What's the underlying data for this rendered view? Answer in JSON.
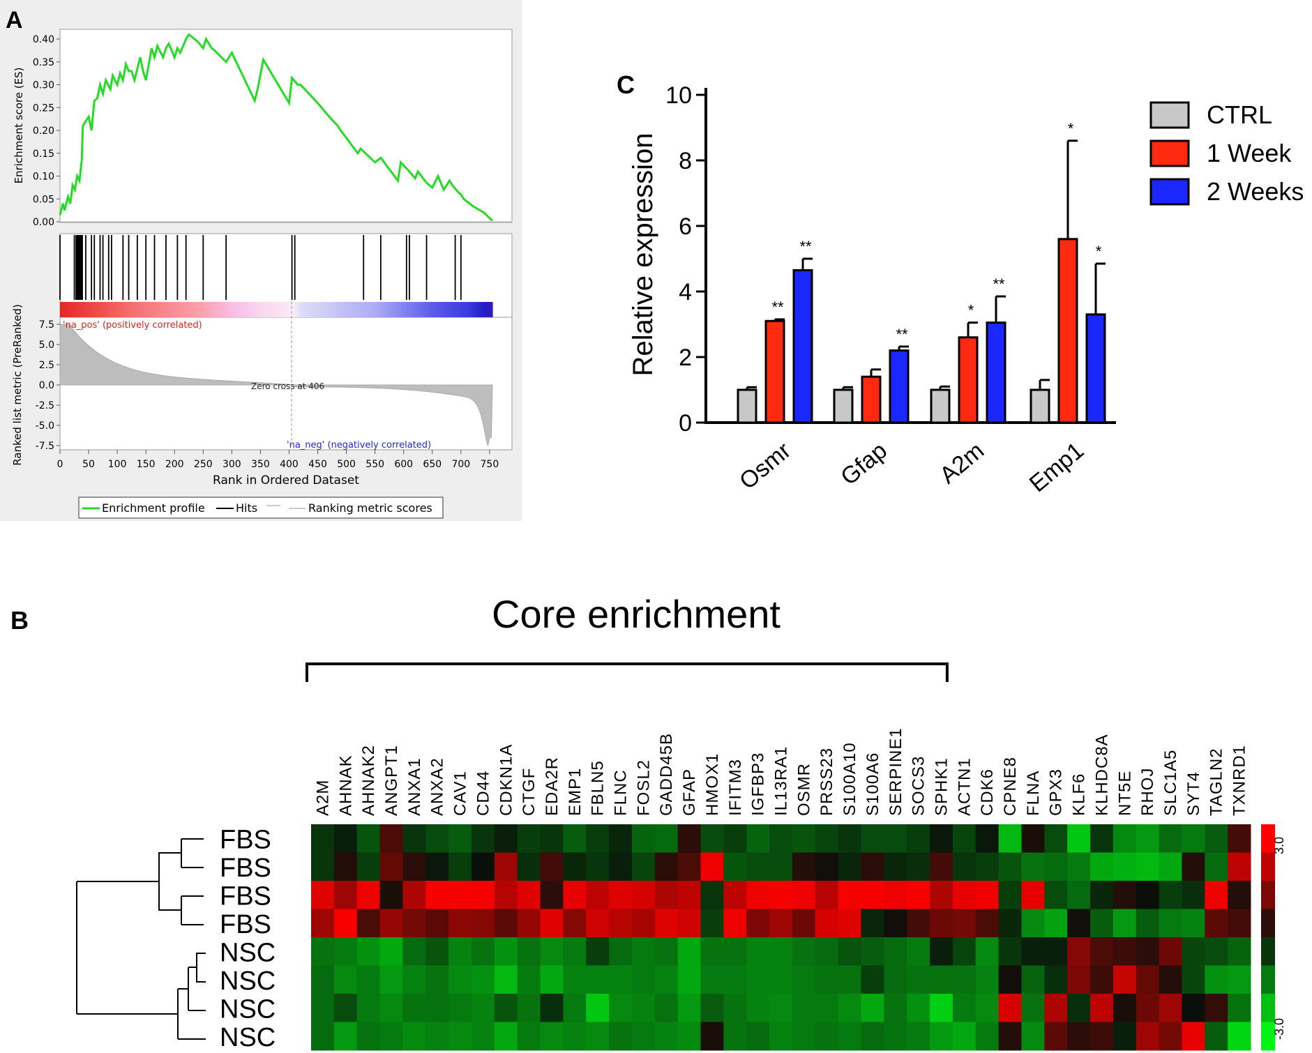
{
  "panels": {
    "a": "A",
    "b": "B",
    "c": "C"
  },
  "colors": {
    "gsea_line": "#22dd22",
    "ctrl": "#c8c8c8",
    "week1": "#ff2a10",
    "week2": "#1a28ff"
  },
  "chart_data": [
    {
      "id": "gsea",
      "type": "line",
      "ylabel": "Enrichment score (ES)",
      "ylim": [
        0.0,
        0.42
      ],
      "yticks": [
        "0.40",
        "0.35",
        "0.30",
        "0.25",
        "0.20",
        "0.15",
        "0.10",
        "0.05",
        "0.00"
      ],
      "series": [
        {
          "name": "Enrichment profile",
          "x": [
            0,
            5,
            8,
            14,
            18,
            22,
            26,
            30,
            34,
            38,
            40,
            50,
            55,
            60,
            65,
            70,
            75,
            80,
            88,
            92,
            100,
            105,
            110,
            115,
            120,
            125,
            130,
            140,
            145,
            150,
            160,
            165,
            170,
            180,
            185,
            190,
            195,
            200,
            205,
            210,
            220,
            225,
            235,
            240,
            250,
            255,
            260,
            265,
            270,
            290,
            300,
            340,
            345,
            355,
            400,
            405,
            415,
            420,
            450,
            470,
            485,
            490,
            520,
            525,
            550,
            560,
            590,
            595,
            610,
            620,
            625,
            640,
            650,
            660,
            670,
            680,
            685,
            695,
            700,
            705,
            720,
            740,
            755
          ],
          "y": [
            0.015,
            0.04,
            0.025,
            0.055,
            0.04,
            0.08,
            0.07,
            0.1,
            0.09,
            0.135,
            0.21,
            0.23,
            0.2,
            0.265,
            0.27,
            0.3,
            0.28,
            0.31,
            0.29,
            0.32,
            0.3,
            0.325,
            0.31,
            0.345,
            0.33,
            0.33,
            0.31,
            0.36,
            0.33,
            0.31,
            0.38,
            0.36,
            0.385,
            0.36,
            0.38,
            0.39,
            0.375,
            0.36,
            0.38,
            0.37,
            0.4,
            0.41,
            0.4,
            0.395,
            0.38,
            0.4,
            0.39,
            0.38,
            0.375,
            0.35,
            0.37,
            0.265,
            0.29,
            0.355,
            0.26,
            0.315,
            0.3,
            0.3,
            0.26,
            0.23,
            0.21,
            0.2,
            0.15,
            0.16,
            0.13,
            0.14,
            0.09,
            0.13,
            0.11,
            0.095,
            0.11,
            0.085,
            0.075,
            0.1,
            0.07,
            0.09,
            0.08,
            0.065,
            0.06,
            0.05,
            0.035,
            0.02,
            0.002
          ]
        }
      ],
      "hits": [
        0,
        25,
        28,
        30,
        32,
        33,
        34,
        35,
        36,
        37,
        38,
        39,
        45,
        55,
        60,
        70,
        75,
        85,
        90,
        110,
        120,
        135,
        150,
        165,
        185,
        205,
        220,
        250,
        290,
        405,
        410,
        530,
        560,
        605,
        610,
        640,
        690,
        700
      ],
      "ranked_ylabel": "Ranked list metric (PreRanked)",
      "ranked_yticks": [
        "7.5",
        "5.0",
        "2.5",
        "0.0",
        "-2.5",
        "-5.0",
        "-7.5"
      ],
      "xlabel": "Rank in Ordered Dataset",
      "xticks": [
        "0",
        "50",
        "100",
        "150",
        "200",
        "250",
        "300",
        "350",
        "400",
        "450",
        "500",
        "550",
        "600",
        "650",
        "700",
        "750"
      ],
      "annotations": {
        "pos": "'na_pos' (positively correlated)",
        "neg": "'na_neg' (negatively correlated)",
        "zero": "Zero cross at 406"
      },
      "legend": [
        "Enrichment profile",
        "Hits",
        "Ranking metric scores"
      ]
    },
    {
      "id": "expression",
      "type": "bar",
      "categories": [
        "Osmr",
        "Gfap",
        "A2m",
        "Emp1"
      ],
      "ylabel": "Relative expression",
      "ylim": [
        0,
        10
      ],
      "yticks": [
        "0",
        "2",
        "4",
        "6",
        "8",
        "10"
      ],
      "series": [
        {
          "name": "CTRL",
          "values": [
            1.0,
            1.0,
            1.0,
            1.0
          ],
          "errors": [
            0.08,
            0.08,
            0.1,
            0.3
          ],
          "sig": [
            "",
            "",
            "",
            ""
          ]
        },
        {
          "name": "1 Week",
          "values": [
            3.1,
            1.4,
            2.6,
            5.6
          ],
          "errors": [
            0.05,
            0.22,
            0.45,
            3.0
          ],
          "sig": [
            "**",
            "",
            "*",
            "*"
          ]
        },
        {
          "name": "2 Weeks",
          "values": [
            4.65,
            2.2,
            3.05,
            3.3
          ],
          "errors": [
            0.35,
            0.12,
            0.8,
            1.55
          ],
          "sig": [
            "**",
            "**",
            "**",
            "*"
          ]
        }
      ],
      "legend_position": "top-right"
    },
    {
      "id": "heatmap",
      "type": "heatmap",
      "title": "Core enrichment",
      "columns": [
        "A2M",
        "AHNAK",
        "AHNAK2",
        "ANGPT1",
        "ANXA1",
        "ANXA2",
        "CAV1",
        "CD44",
        "CDKN1A",
        "CTGF",
        "EDA2R",
        "EMP1",
        "FBLN5",
        "FLNC",
        "FOSL2",
        "GADD45B",
        "GFAP",
        "HMOX1",
        "IFITM3",
        "IGFBP3",
        "IL13RA1",
        "OSMR",
        "PRSS23",
        "S100A10",
        "S100A6",
        "SERPINE1",
        "SOCS3",
        "SPHK1",
        "ACTN1",
        "CDK6",
        "CPNE8",
        "FLNA",
        "GPX3",
        "KLF6",
        "KLHDC8A",
        "NT5E",
        "RHOJ",
        "SLC1A5",
        "SYT4",
        "TAGLN2",
        "TXNRD1"
      ],
      "rows": [
        "FBS",
        "FBS",
        "FBS",
        "FBS",
        "NSC",
        "NSC",
        "NSC",
        "NSC"
      ],
      "core_count": 28,
      "values": [
        [
          -0.5,
          -0.2,
          -0.9,
          0.8,
          -0.5,
          -0.8,
          -1.0,
          -0.5,
          -0.2,
          -0.6,
          -0.5,
          -1.0,
          -0.6,
          -0.3,
          -1.1,
          -1.2,
          0.4,
          -0.8,
          -0.6,
          -1.1,
          -0.8,
          -0.9,
          -0.7,
          -0.5,
          -0.8,
          -0.8,
          -0.6,
          -0.1,
          -0.7,
          -0.1,
          -2.2,
          0.2,
          -0.8,
          -2.4,
          -0.5,
          -1.6,
          -1.8,
          -1.2,
          -1.4,
          -1.0,
          0.7
        ],
        [
          -0.5,
          0.3,
          -0.6,
          1.1,
          0.4,
          -0.1,
          -0.6,
          0.0,
          1.8,
          -0.4,
          0.7,
          -0.3,
          -0.5,
          -0.2,
          -0.7,
          0.4,
          0.8,
          2.8,
          -0.9,
          -0.8,
          -0.8,
          0.3,
          0.1,
          -0.3,
          0.4,
          -0.3,
          -0.4,
          0.7,
          -0.5,
          -0.6,
          -0.9,
          -1.3,
          -1.2,
          -1.4,
          -2.0,
          -2.1,
          -2.2,
          -2.0,
          0.3,
          -1.2,
          2.2
        ],
        [
          2.6,
          1.8,
          2.8,
          0.2,
          2.0,
          2.9,
          2.9,
          2.9,
          2.1,
          2.6,
          0.4,
          2.7,
          2.2,
          2.6,
          2.5,
          2.0,
          2.2,
          -0.5,
          2.2,
          2.8,
          2.9,
          2.8,
          2.1,
          2.9,
          2.9,
          2.8,
          2.9,
          2.0,
          2.7,
          2.8,
          -0.6,
          2.7,
          -0.8,
          -1.2,
          -0.3,
          0.3,
          0.0,
          -0.6,
          -0.4,
          2.8,
          0.3
        ],
        [
          1.8,
          2.9,
          0.8,
          1.7,
          1.3,
          1.0,
          1.6,
          1.5,
          1.0,
          1.7,
          2.6,
          1.5,
          2.4,
          2.1,
          1.9,
          2.6,
          2.4,
          -0.6,
          2.8,
          1.4,
          1.8,
          1.2,
          2.5,
          2.6,
          -0.3,
          0.1,
          0.7,
          1.2,
          1.3,
          0.8,
          -0.3,
          -1.6,
          -1.9,
          0.1,
          -1.0,
          -1.8,
          -1.0,
          -1.4,
          -1.5,
          1.0,
          0.7
        ],
        [
          -1.3,
          -1.4,
          -1.7,
          -2.0,
          -1.2,
          -0.9,
          -1.5,
          -1.3,
          -1.7,
          -1.3,
          -1.6,
          -1.4,
          -0.6,
          -1.2,
          -1.4,
          -1.3,
          -2.0,
          -1.3,
          -1.3,
          -1.5,
          -1.5,
          -1.3,
          -1.2,
          -0.9,
          -1.0,
          -1.2,
          -1.4,
          -0.2,
          -0.7,
          -1.6,
          -0.5,
          -0.2,
          -0.2,
          1.5,
          0.8,
          0.6,
          0.4,
          1.2,
          -0.7,
          -0.8,
          -1.1
        ],
        [
          -1.2,
          -1.6,
          -1.4,
          -1.8,
          -1.5,
          -1.3,
          -1.6,
          -1.7,
          -2.2,
          -1.4,
          -2.0,
          -1.5,
          -1.5,
          -1.5,
          -1.4,
          -1.5,
          -2.0,
          -1.4,
          -1.4,
          -1.5,
          -1.5,
          -1.4,
          -1.3,
          -1.3,
          -0.6,
          -1.2,
          -1.3,
          -1.3,
          -1.3,
          -1.5,
          0.1,
          -1.1,
          -0.4,
          1.4,
          0.6,
          2.3,
          1.1,
          0.3,
          -0.7,
          -1.7,
          -1.8
        ],
        [
          -1.2,
          -0.8,
          -1.4,
          -1.6,
          -1.3,
          -1.3,
          -1.4,
          -1.5,
          -0.9,
          -1.3,
          -0.4,
          -1.4,
          -2.4,
          -1.6,
          -1.5,
          -1.3,
          -1.8,
          -1.0,
          -1.3,
          -1.5,
          -1.6,
          -1.4,
          -1.4,
          -1.6,
          -2.0,
          -1.3,
          -1.7,
          -2.5,
          -1.4,
          -1.6,
          2.5,
          -1.3,
          2.0,
          -0.4,
          2.2,
          0.2,
          1.2,
          1.8,
          0.0,
          0.5,
          -1.3
        ],
        [
          -1.2,
          -1.8,
          -1.3,
          -1.4,
          -1.6,
          -1.5,
          -1.6,
          -1.5,
          -2.0,
          -1.4,
          -1.6,
          -1.5,
          -1.6,
          -1.3,
          -1.4,
          -1.5,
          -1.6,
          0.2,
          -1.3,
          -1.2,
          -1.5,
          -1.4,
          -1.3,
          -1.4,
          -1.2,
          -1.3,
          -1.4,
          -1.8,
          -2.0,
          -1.4,
          0.3,
          -1.6,
          1.0,
          0.4,
          0.6,
          -0.2,
          1.8,
          1.3,
          2.7,
          -1.0,
          -2.6
        ]
      ],
      "color_scale": {
        "min": "-3.0",
        "max": "3.0"
      }
    }
  ]
}
